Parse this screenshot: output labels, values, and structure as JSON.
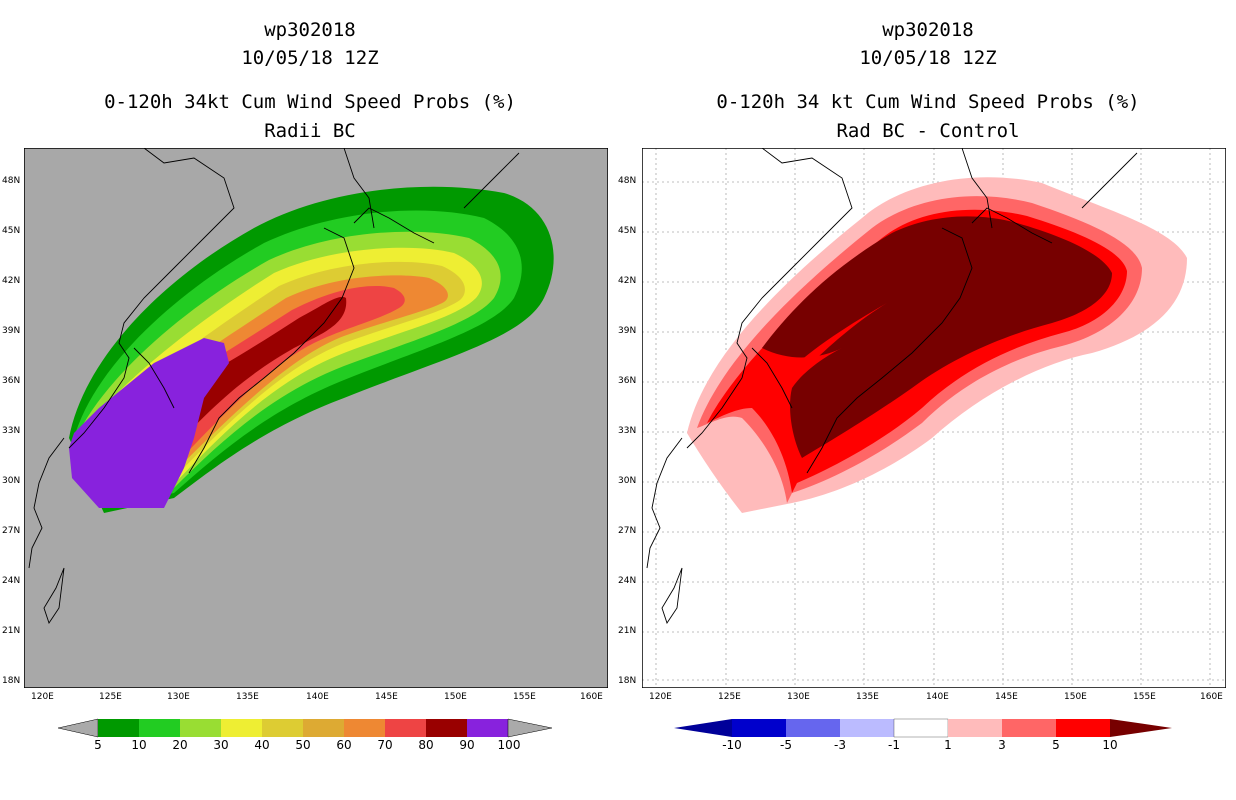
{
  "left_panel": {
    "storm_id": "wp302018",
    "date": "10/05/18 12Z",
    "product": "0-120h 34kt Cum Wind Speed Probs (%)",
    "subtitle": "Radii BC",
    "lon_labels": [
      "120E",
      "125E",
      "130E",
      "135E",
      "140E",
      "145E",
      "150E",
      "155E",
      "160E"
    ],
    "lat_labels": [
      "48N",
      "45N",
      "42N",
      "39N",
      "36N",
      "33N",
      "30N",
      "27N",
      "24N",
      "21N",
      "18N"
    ],
    "colorbar": {
      "labels": [
        "5",
        "10",
        "20",
        "30",
        "40",
        "50",
        "60",
        "70",
        "80",
        "90",
        "100"
      ],
      "colors": [
        "#009900",
        "#22cc22",
        "#99dd33",
        "#eeee33",
        "#ddcc33",
        "#ddaa33",
        "#ee8833",
        "#ee4444",
        "#990000",
        "#8822dd"
      ],
      "end_color": "#aaaaaa"
    },
    "background": "#a8a8a8"
  },
  "right_panel": {
    "storm_id": "wp302018",
    "date": "10/05/18 12Z",
    "product": "0-120h 34 kt Cum Wind Speed Probs (%)",
    "subtitle": "Rad BC - Control",
    "lon_labels": [
      "120E",
      "125E",
      "130E",
      "135E",
      "140E",
      "145E",
      "150E",
      "155E",
      "160E"
    ],
    "lat_labels": [
      "48N",
      "45N",
      "42N",
      "39N",
      "36N",
      "33N",
      "30N",
      "27N",
      "24N",
      "21N",
      "18N"
    ],
    "colorbar": {
      "labels": [
        "-10",
        "-5",
        "-3",
        "-1",
        "1",
        "3",
        "5",
        "10"
      ],
      "colors": [
        "#0000cc",
        "#3333ff",
        "#7777ee",
        "#bbbbff",
        "#ffffff",
        "#ffbbbb",
        "#ff6666",
        "#ff0000"
      ],
      "start_color": "#000099",
      "end_color": "#770000"
    },
    "background": "#ffffff"
  }
}
